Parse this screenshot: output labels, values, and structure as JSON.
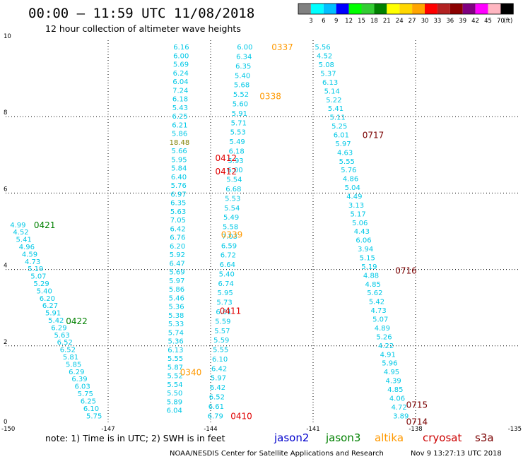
{
  "header": {
    "title": "00:00 – 11:59 UTC 11/08/2018",
    "subtitle": "12 hour collection of altimeter wave heights"
  },
  "colorbar": {
    "colors": [
      "#808080",
      "#00ffff",
      "#00bfff",
      "#0000ff",
      "#00ff00",
      "#32cd32",
      "#008000",
      "#ffff00",
      "#ffd700",
      "#ffa500",
      "#ff0000",
      "#b22222",
      "#8b0000",
      "#800080",
      "#ff00ff",
      "#ffb6c1",
      "#000000"
    ],
    "labels": [
      "3",
      "6",
      "9",
      "12",
      "15",
      "18",
      "21",
      "24",
      "27",
      "30",
      "33",
      "36",
      "39",
      "42",
      "45",
      "70"
    ],
    "unit": "(ft)"
  },
  "note": "note: 1) Time is in UTC; 2) SWH is in feet",
  "satellites": [
    {
      "name": "jason2",
      "color": "#0000cc"
    },
    {
      "name": "jason3",
      "color": "#008000"
    },
    {
      "name": "altika",
      "color": "#ff9900"
    },
    {
      "name": "cryosat",
      "color": "#cc0000"
    },
    {
      "name": "s3a",
      "color": "#7a0000"
    }
  ],
  "footer": {
    "left": "NOAA/NESDIS Center for Satellite Applications and Research",
    "right": "Nov  9 13:27:13 UTC 2018"
  },
  "chart_data": {
    "type": "scatter",
    "xlim": [
      -150,
      -135
    ],
    "ylim": [
      0,
      10
    ],
    "xticks": [
      "-150",
      "-147",
      "-144",
      "-141",
      "-138",
      "-135"
    ],
    "yticks": [
      "10",
      "8",
      "6",
      "4",
      "2",
      "0"
    ],
    "grid": true,
    "colors": {
      "cyan": "#00c8e6",
      "yellow_green": "#808000",
      "jason3": "#008000",
      "altika": "#ff9900",
      "cryosat": "#e00000",
      "s3a": "#7a0000"
    },
    "tracks": [
      {
        "name": "Track 1",
        "color": "cyan",
        "x0": -149.64,
        "y0": 5.18,
        "x1": -147.41,
        "y1": 0.18,
        "values": [
          "4.99",
          "4.52",
          "5.41",
          "4.96",
          "4.59",
          "4.73",
          "5.19",
          "5.07",
          "5.29",
          "5.40",
          "6.20",
          "6.27",
          "5.91",
          "5.42",
          "6.29",
          "5.63",
          "6.52",
          "6.52",
          "5.81",
          "5.85",
          "6.29",
          "6.39",
          "6.03",
          "5.75",
          "6.25",
          "6.10",
          "5.75"
        ]
      },
      {
        "name": "Track 2",
        "color": "cyan",
        "x0": -144.86,
        "y0": 9.83,
        "x1": -145.06,
        "y1": 0.32,
        "values": [
          "6.16",
          "6.00",
          "5.69",
          "6.24",
          "6.04",
          "7.24",
          "6.18",
          "5.43",
          "6.25",
          "6.21",
          "5.86",
          "18.48",
          "5.66",
          "5.95",
          "5.84",
          "6.40",
          "5.76",
          "6.97",
          "6.35",
          "5.63",
          "7.05",
          "6.42",
          "6.76",
          "6.20",
          "5.92",
          "6.47",
          "5.69",
          "5.97",
          "5.86",
          "5.46",
          "5.36",
          "5.38",
          "5.33",
          "5.74",
          "5.36",
          "6.13",
          "5.55",
          "5.87",
          "5.52",
          "5.54",
          "5.50",
          "5.89",
          "6.04"
        ],
        "highlight": {
          "index": 11,
          "color": "yellow_green"
        }
      },
      {
        "name": "Track 3",
        "color": "cyan",
        "x0": -143.0,
        "y0": 9.83,
        "x1": -143.86,
        "y1": 0.18,
        "values": [
          "6.00",
          "6.34",
          "6.35",
          "5.40",
          "5.68",
          "5.52",
          "5.60",
          "5.91",
          "5.71",
          "5.53",
          "5.49",
          "6.18",
          "5.93",
          "6.00",
          "5.54",
          "6.68",
          "5.53",
          "5.54",
          "5.49",
          "5.58",
          "7.03",
          "6.59",
          "6.72",
          "6.64",
          "5.40",
          "6.74",
          "5.95",
          "5.73",
          "6.01",
          "5.59",
          "5.57",
          "5.59",
          "5.55",
          "6.10",
          "6.42",
          "5.97",
          "6.42",
          "6.52",
          "6.61",
          "6.79"
        ]
      },
      {
        "name": "Track 4",
        "color": "cyan",
        "x0": -140.72,
        "y0": 9.83,
        "x1": -138.43,
        "y1": 0.18,
        "values": [
          "5.56",
          "4.52",
          "5.08",
          "5.37",
          "6.13",
          "5.14",
          "5.22",
          "5.41",
          "5.11",
          "5.25",
          "6.01",
          "5.97",
          "4.63",
          "5.55",
          "5.76",
          "4.86",
          "5.04",
          "4.49",
          "3.13",
          "5.17",
          "5.06",
          "4.43",
          "6.06",
          "3.94",
          "5.15",
          "5.19",
          "4.88",
          "4.85",
          "5.62",
          "5.42",
          "4.73",
          "5.07",
          "4.89",
          "5.26",
          "4.22",
          "4.91",
          "5.96",
          "4.95",
          "4.39",
          "4.85",
          "4.06",
          "4.72",
          "3.89"
        ]
      }
    ],
    "pass_times": [
      {
        "label": "0337",
        "satellite": "altika",
        "x": -141.9,
        "y": 9.83
      },
      {
        "label": "0338",
        "satellite": "altika",
        "x": -142.25,
        "y": 8.55
      },
      {
        "label": "0339",
        "satellite": "altika",
        "x": -143.38,
        "y": 4.93
      },
      {
        "label": "0340",
        "satellite": "altika",
        "x": -144.58,
        "y": 1.32
      },
      {
        "label": "0412",
        "satellite": "cryosat",
        "x": -143.55,
        "y": 6.93
      },
      {
        "label": "0412",
        "satellite": "cryosat",
        "x": -143.55,
        "y": 6.58
      },
      {
        "label": "0411",
        "satellite": "cryosat",
        "x": -143.42,
        "y": 2.93
      },
      {
        "label": "0410",
        "satellite": "cryosat",
        "x": -143.1,
        "y": 0.18
      },
      {
        "label": "0421",
        "satellite": "jason3",
        "x": -148.86,
        "y": 5.18
      },
      {
        "label": "0422",
        "satellite": "jason3",
        "x": -147.92,
        "y": 2.66
      },
      {
        "label": "0717",
        "satellite": "s3a",
        "x": -139.24,
        "y": 7.53
      },
      {
        "label": "0716",
        "satellite": "s3a",
        "x": -138.28,
        "y": 3.98
      },
      {
        "label": "0715",
        "satellite": "s3a",
        "x": -137.96,
        "y": 0.47
      },
      {
        "label": "0714",
        "satellite": "s3a",
        "x": -137.96,
        "y": 0.03
      }
    ]
  }
}
